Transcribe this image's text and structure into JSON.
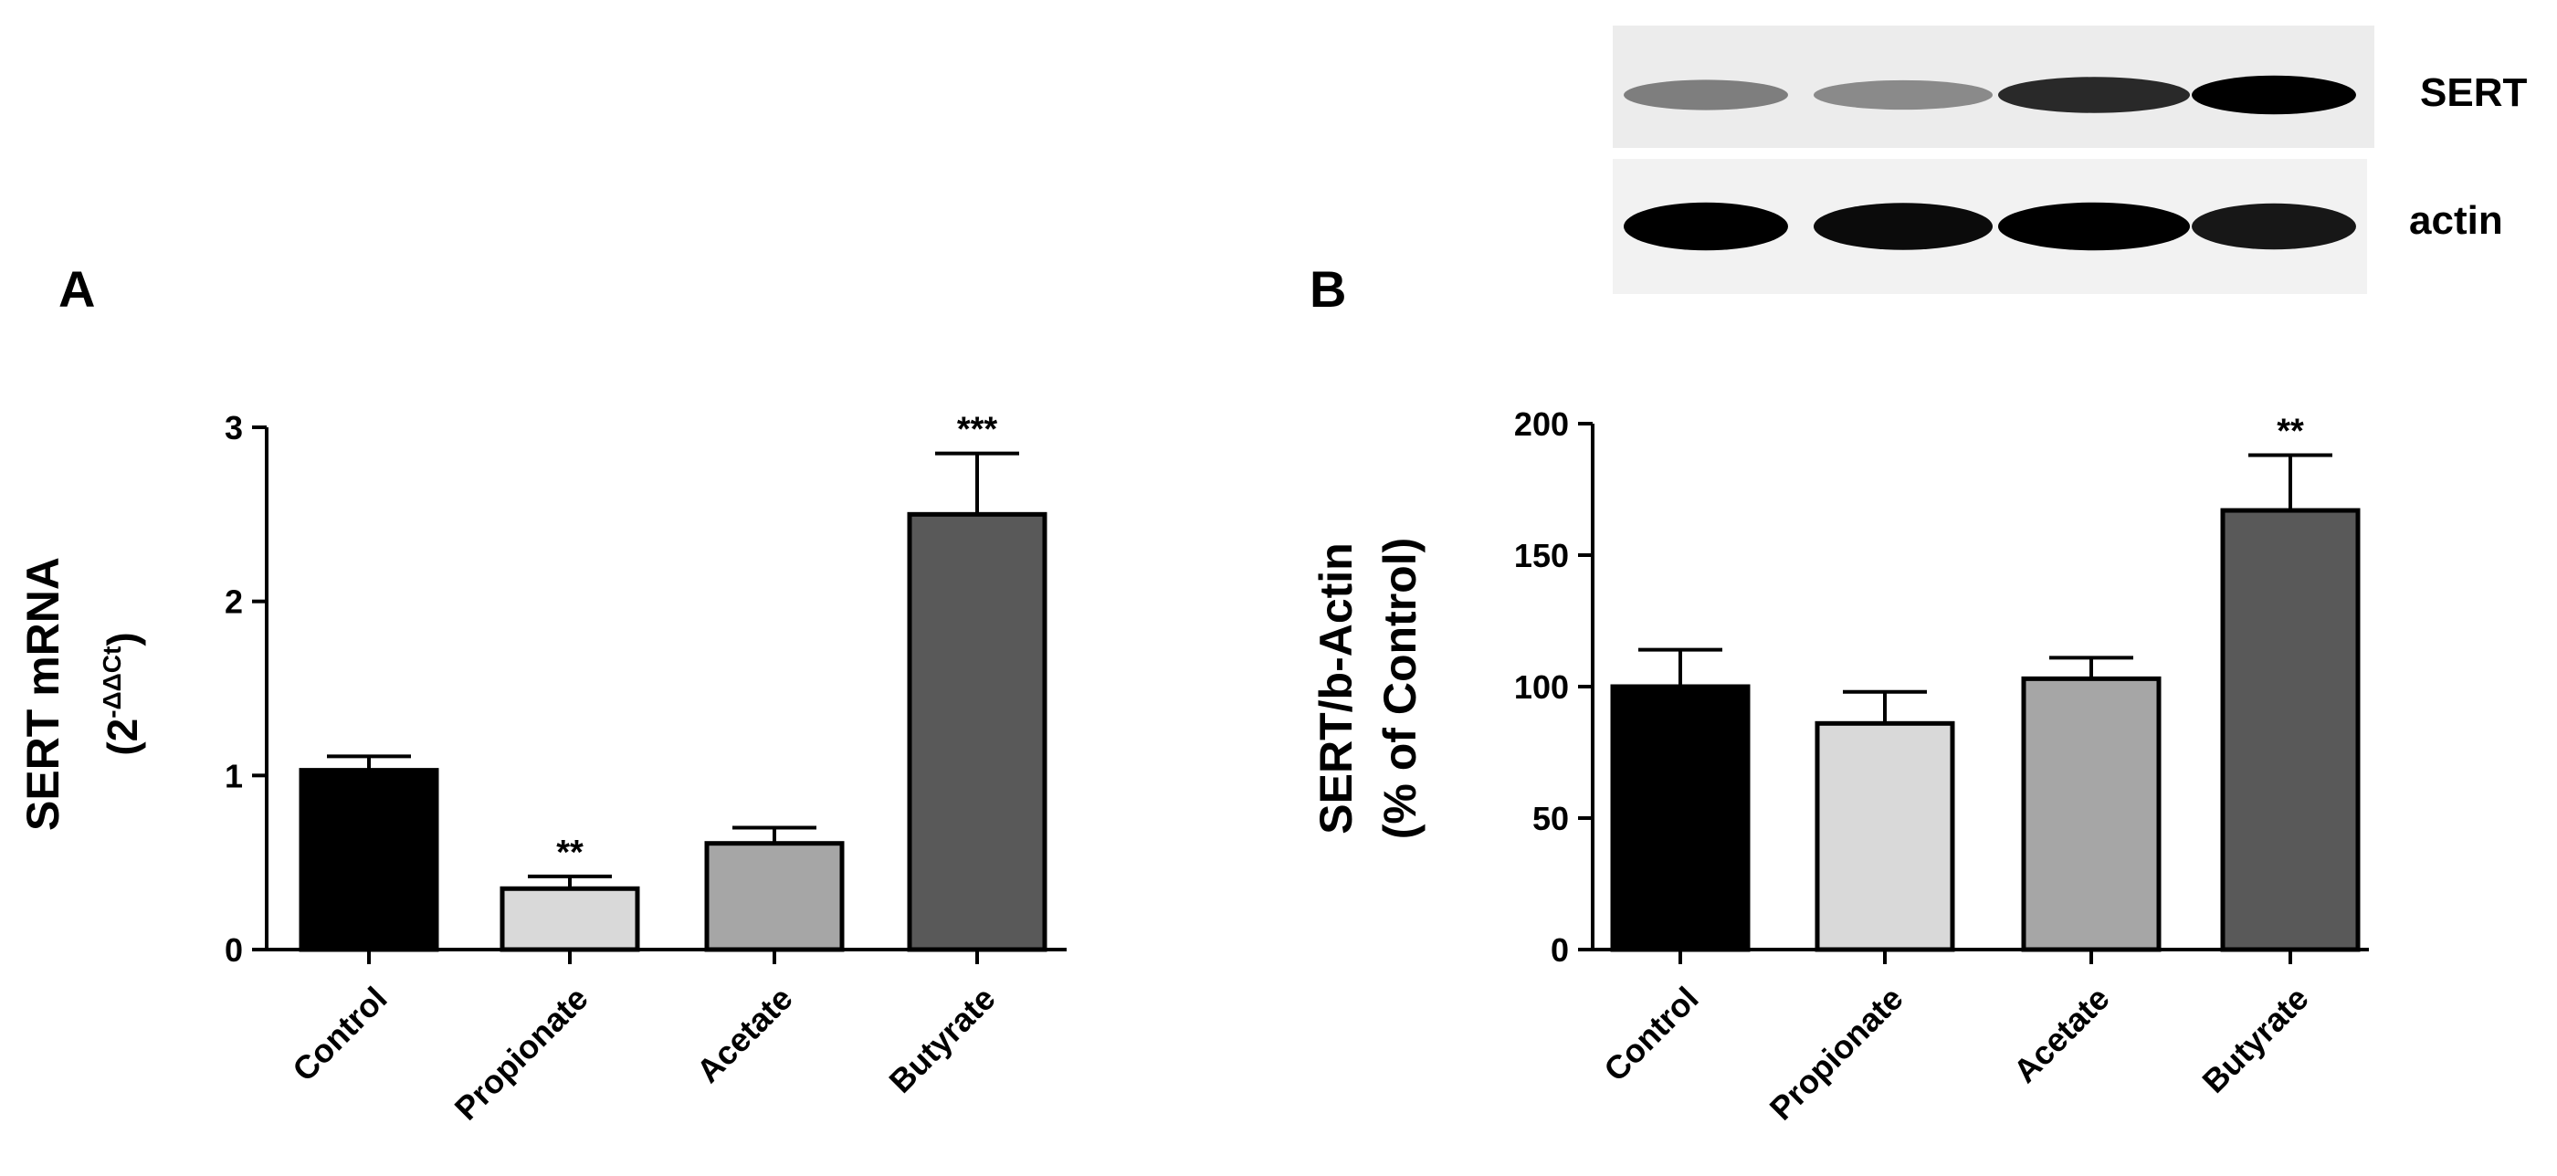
{
  "panels": {
    "a": {
      "letter": "A"
    },
    "b": {
      "letter": "B"
    }
  },
  "blot": {
    "labels": [
      "SERT",
      "actin"
    ],
    "rows": [
      {
        "label": "SERT",
        "intensities": [
          0.45,
          0.4,
          0.82,
          1.0
        ]
      },
      {
        "label": "actin",
        "intensities": [
          1.0,
          0.95,
          1.0,
          0.9
        ]
      }
    ]
  },
  "chart_data": [
    {
      "type": "bar",
      "panel": "A",
      "categories": [
        "Control",
        "Propionate",
        "Acetate",
        "Butyrate"
      ],
      "values": [
        1.03,
        0.35,
        0.61,
        2.5
      ],
      "errors": [
        0.08,
        0.07,
        0.09,
        0.35
      ],
      "significance": [
        "",
        "**",
        "",
        "***"
      ],
      "colors": [
        "#000000",
        "#d9d9d9",
        "#a6a6a6",
        "#595959"
      ],
      "ylabel_main": "SERT mRNA",
      "ylabel_sub_base": "(2",
      "ylabel_sub_sup": "-ΔΔCt",
      "ylabel_sub_end": ")",
      "ylim": [
        0,
        3
      ],
      "yticks": [
        "0",
        "1",
        "2",
        "3"
      ],
      "ytick_values": [
        0,
        1,
        2,
        3
      ]
    },
    {
      "type": "bar",
      "panel": "B",
      "categories": [
        "Control",
        "Propionate",
        "Acetate",
        "Butyrate"
      ],
      "values": [
        100,
        86,
        103,
        167
      ],
      "errors": [
        14,
        12,
        8,
        21
      ],
      "significance": [
        "",
        "",
        "",
        "**"
      ],
      "colors": [
        "#000000",
        "#d9d9d9",
        "#a6a6a6",
        "#595959"
      ],
      "ylabel_main": "SERT/b-Actin",
      "ylabel_sub": "(% of Control)",
      "ylim": [
        0,
        200
      ],
      "yticks": [
        "0",
        "50",
        "100",
        "150",
        "200"
      ],
      "ytick_values": [
        0,
        50,
        100,
        150,
        200
      ]
    }
  ]
}
